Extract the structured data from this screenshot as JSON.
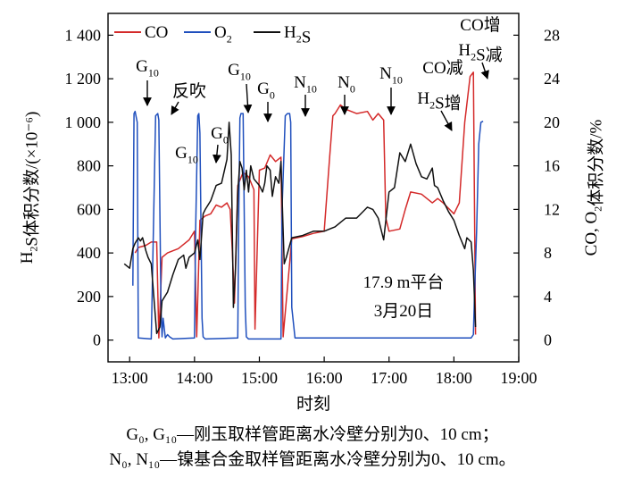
{
  "chart_data": {
    "type": "line",
    "xlabel": "时刻",
    "ylabel_left": "H2S体积分数/(×10⁻⁶)",
    "ylabel_right": "CO, O2体积分数/%",
    "x_ticks": [
      "13:00",
      "14:00",
      "15:00",
      "16:00",
      "17:00",
      "18:00",
      "19:00"
    ],
    "xlim": [
      "12:40",
      "19:00"
    ],
    "ylim_left": [
      -100,
      1500
    ],
    "ylim_right": [
      -2,
      30
    ],
    "yticks_left": [
      "0",
      "200",
      "400",
      "600",
      "800",
      "1 000",
      "1 200",
      "1 400"
    ],
    "yticks_right": [
      "0",
      "4",
      "8",
      "12",
      "16",
      "20",
      "24",
      "28"
    ],
    "legend": {
      "placement": "top-left",
      "entries": [
        {
          "label": "CO",
          "color": "#d42a2a"
        },
        {
          "label": "O2",
          "color": "#1f4fbd"
        },
        {
          "label": "H2S",
          "color": "#111111"
        }
      ]
    },
    "series": [
      {
        "name": "CO",
        "axis": "right",
        "color": "#d42a2a",
        "x": [
          "13:05",
          "13:08",
          "13:15",
          "13:20",
          "13:25",
          "13:27",
          "13:30",
          "13:35",
          "13:40",
          "13:45",
          "13:50",
          "13:55",
          "14:00",
          "14:02",
          "14:05",
          "14:10",
          "14:15",
          "14:20",
          "14:25",
          "14:30",
          "14:33",
          "14:35",
          "14:37",
          "14:40",
          "14:45",
          "14:50",
          "14:55",
          "14:56",
          "15:00",
          "15:05",
          "15:10",
          "15:15",
          "15:20",
          "15:22",
          "15:30",
          "15:40",
          "15:50",
          "16:00",
          "16:05",
          "16:08",
          "16:10",
          "16:15",
          "16:20",
          "16:30",
          "16:40",
          "16:45",
          "16:50",
          "16:55",
          "16:57",
          "17:00",
          "17:10",
          "17:15",
          "17:20",
          "17:30",
          "17:40",
          "17:45",
          "17:50",
          "18:00",
          "18:05",
          "18:10",
          "18:15",
          "18:18",
          "18:20"
        ],
        "y": [
          8,
          8.5,
          8.7,
          9,
          9,
          0.2,
          7.6,
          8,
          8.2,
          8.4,
          8.8,
          9.2,
          10,
          0.3,
          11,
          11.4,
          11.6,
          12.4,
          12.2,
          12.6,
          12,
          8.2,
          3.4,
          14.2,
          15.4,
          15,
          13.8,
          1,
          15.6,
          15.8,
          17,
          16.4,
          16.8,
          0.3,
          9.3,
          9.5,
          9.8,
          10,
          16.8,
          20.6,
          20.8,
          21.6,
          21.2,
          20.8,
          21,
          20.2,
          20.8,
          20.2,
          11.2,
          10,
          10.2,
          12,
          13.6,
          13.4,
          12.6,
          13,
          12.6,
          11.6,
          12.6,
          20,
          24.2,
          24.6,
          0.5
        ]
      },
      {
        "name": "O2",
        "axis": "right",
        "color": "#1f4fbd",
        "x": [
          "13:03",
          "13:04",
          "13:05",
          "13:07",
          "13:08",
          "13:20",
          "13:21",
          "13:24",
          "13:26",
          "13:27",
          "13:29",
          "13:30",
          "13:31",
          "13:33",
          "13:35",
          "13:37",
          "13:40",
          "14:00",
          "14:01",
          "14:03",
          "14:04",
          "14:05",
          "14:07",
          "14:08",
          "14:10",
          "14:40",
          "14:41",
          "14:42",
          "14:43",
          "14:45",
          "14:47",
          "14:48",
          "14:50",
          "15:20",
          "15:21",
          "15:24",
          "15:26",
          "15:28",
          "15:29",
          "15:30",
          "15:33",
          "18:16",
          "18:18",
          "18:19",
          "18:21",
          "18:23",
          "18:25",
          "18:27"
        ],
        "y": [
          5,
          20.8,
          21,
          20,
          0.2,
          0.1,
          5,
          20.6,
          20.8,
          20.2,
          3,
          0.3,
          2,
          0.2,
          0.5,
          0.3,
          0.1,
          0.2,
          10,
          20.6,
          20.8,
          19,
          2,
          0.3,
          0.1,
          0.2,
          12,
          20.4,
          20.8,
          20.8,
          3,
          0.3,
          0.1,
          0.1,
          12,
          20.6,
          20.8,
          20.8,
          20,
          3,
          0.2,
          0.2,
          0.5,
          4,
          10,
          18,
          20,
          20.1
        ]
      },
      {
        "name": "H2S",
        "axis": "left",
        "color": "#111111",
        "x": [
          "12:55",
          "13:00",
          "13:03",
          "13:05",
          "13:08",
          "13:10",
          "13:12",
          "13:15",
          "13:17",
          "13:20",
          "13:25",
          "13:28",
          "13:30",
          "13:35",
          "13:40",
          "13:45",
          "13:50",
          "13:52",
          "13:55",
          "14:00",
          "14:03",
          "14:05",
          "14:08",
          "14:10",
          "14:15",
          "14:20",
          "14:25",
          "14:30",
          "14:32",
          "14:34",
          "14:36",
          "14:38",
          "14:40",
          "14:42",
          "14:44",
          "14:46",
          "14:48",
          "14:50",
          "14:52",
          "14:55",
          "15:00",
          "15:03",
          "15:05",
          "15:07",
          "15:10",
          "15:12",
          "15:15",
          "15:18",
          "15:20",
          "15:23",
          "15:25",
          "15:30",
          "15:40",
          "15:50",
          "16:00",
          "16:05",
          "16:10",
          "16:20",
          "16:30",
          "16:40",
          "16:45",
          "16:50",
          "16:55",
          "17:00",
          "17:05",
          "17:10",
          "17:15",
          "17:20",
          "17:25",
          "17:30",
          "17:35",
          "17:40",
          "17:42",
          "17:45",
          "17:50",
          "17:55",
          "18:00",
          "18:05",
          "18:10",
          "18:12",
          "18:14",
          "18:16",
          "18:18",
          "18:20"
        ],
        "y": [
          350,
          330,
          420,
          445,
          470,
          455,
          470,
          410,
          380,
          350,
          30,
          60,
          180,
          220,
          300,
          370,
          390,
          330,
          380,
          400,
          460,
          370,
          580,
          600,
          640,
          710,
          720,
          830,
          1000,
          850,
          150,
          330,
          680,
          820,
          790,
          690,
          780,
          680,
          800,
          740,
          710,
          680,
          720,
          800,
          780,
          660,
          750,
          720,
          820,
          350,
          380,
          470,
          480,
          500,
          500,
          510,
          520,
          560,
          560,
          610,
          600,
          560,
          460,
          680,
          700,
          860,
          820,
          900,
          810,
          750,
          740,
          790,
          710,
          700,
          640,
          590,
          550,
          480,
          420,
          470,
          460,
          450,
          320,
          60
        ]
      }
    ],
    "annotations": [
      {
        "text": "G₁₀",
        "x": "13:05",
        "arrow": true
      },
      {
        "text": "反吹",
        "x": "13:40",
        "arrow": true
      },
      {
        "text": "G₁₀",
        "x": "13:42",
        "arrow": false
      },
      {
        "text": "G₀",
        "x": "14:12",
        "arrow": true
      },
      {
        "text": "G₁₀",
        "x": "14:40",
        "arrow": true
      },
      {
        "text": "G₀",
        "x": "14:52",
        "arrow": true
      },
      {
        "text": "N₁₀",
        "x": "15:25",
        "arrow": true
      },
      {
        "text": "N₀",
        "x": "16:08",
        "arrow": true
      },
      {
        "text": "N₁₀",
        "x": "16:48",
        "arrow": true
      },
      {
        "text": "CO减",
        "x": "17:40",
        "arrow": false
      },
      {
        "text": "H₂S增",
        "x": "17:40",
        "arrow": true
      },
      {
        "text": "CO增",
        "x": "18:20",
        "arrow": false
      },
      {
        "text": "H₂S减",
        "x": "18:20",
        "arrow": true
      },
      {
        "text": "17.9 m平台",
        "x": "16:35",
        "arrow": false
      },
      {
        "text": "3月20日",
        "x": "16:35",
        "arrow": false
      }
    ]
  },
  "caption": {
    "line1": "G₀, G₁₀—刚玉取样管距离水冷壁分别为0、10 cm；",
    "line2": "N₀, N₁₀—镍基合金取样管距离水冷壁分别为0、10 cm。"
  }
}
